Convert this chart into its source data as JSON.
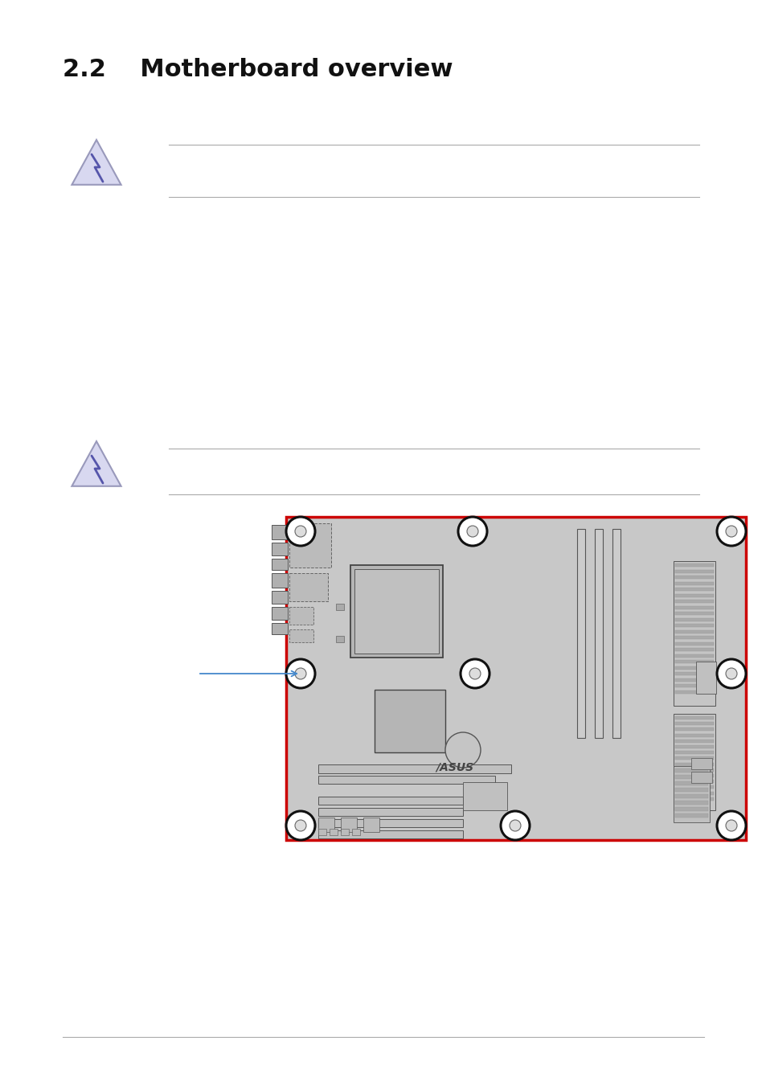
{
  "title": "2.2    Motherboard overview",
  "bg_color": "#ffffff",
  "line_color": "#aaaaaa",
  "warning_icon_color_fill": "#d8d8f0",
  "warning_icon_color_bolt": "#5555aa",
  "warning_icon_color_border": "#9999bb",
  "mb_border_color": "#cc0000",
  "mb_fill_color": "#c8c8c8",
  "arrow_color": "#4488cc",
  "dark": "#333333",
  "mid": "#888888",
  "light": "#bbbbbb"
}
